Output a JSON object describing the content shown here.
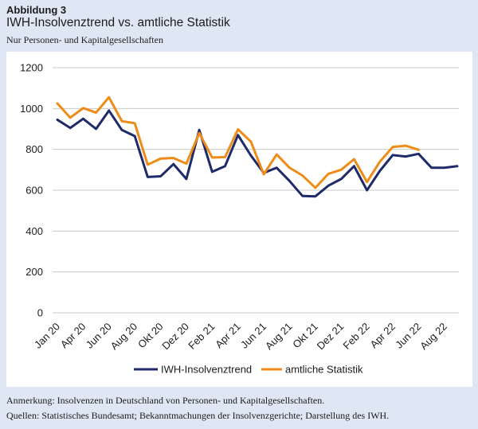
{
  "header": {
    "figure_label": "Abbildung 3",
    "title": "IWH-Insolvenztrend vs. amtliche Statistik",
    "subtitle": "Nur Personen- und Kapitalgesellschaften"
  },
  "footer": {
    "note": "Anmerkung: Insolvenzen in Deutschland von Personen- und Kapitalgesellschaften.",
    "sources": "Quellen: Statistisches Bundesamt; Bekanntmachungen der Insolvenzgerichte; Darstellung des IWH."
  },
  "chart_data": {
    "type": "line",
    "title": "IWH-Insolvenztrend vs. amtliche Statistik",
    "subtitle": "Nur Personen- und Kapitalgesellschaften",
    "xlabel": "",
    "ylabel": "",
    "ylim": [
      0,
      1200
    ],
    "yticks": [
      0,
      200,
      400,
      600,
      800,
      1000,
      1200
    ],
    "grid": true,
    "legend_position": "bottom",
    "x": [
      "Jan 20",
      "Feb 20",
      "Mar 20",
      "Apr 20",
      "May 20",
      "Jun 20",
      "Jul 20",
      "Aug 20",
      "Sep 20",
      "Oct 20",
      "Nov 20",
      "Dec 20",
      "Jan 21",
      "Feb 21",
      "Mar 21",
      "Apr 21",
      "May 21",
      "Jun 21",
      "Jul 21",
      "Aug 21",
      "Sep 21",
      "Oct 21",
      "Nov 21",
      "Dec 21",
      "Jan 22",
      "Feb 22",
      "Mar 22",
      "Apr 22",
      "May 22",
      "Jun 22",
      "Jul 22",
      "Aug 22"
    ],
    "tick_labels": [
      "Jan 20",
      "Apr 20",
      "Jun 20",
      "Aug 20",
      "Okt 20",
      "Dez 20",
      "Feb 21",
      "Apr 21",
      "Jun 21",
      "Aug 21",
      "Okt 21",
      "Dez 21",
      "Feb 22",
      "Apr 22",
      "Jun 22",
      "Aug 22"
    ],
    "series": [
      {
        "name": "IWH-Insolvenztrend",
        "color": "#1f2a6b",
        "values": [
          945,
          905,
          950,
          900,
          990,
          895,
          865,
          665,
          668,
          728,
          655,
          895,
          690,
          718,
          870,
          770,
          685,
          710,
          645,
          572,
          570,
          622,
          655,
          718,
          600,
          695,
          772,
          765,
          778,
          710,
          710,
          718
        ]
      },
      {
        "name": "amtliche Statistik",
        "color": "#ee8c17",
        "values": [
          1025,
          955,
          1002,
          980,
          1055,
          938,
          928,
          725,
          755,
          758,
          730,
          880,
          760,
          762,
          898,
          838,
          678,
          775,
          710,
          672,
          612,
          680,
          700,
          752,
          640,
          740,
          812,
          818,
          798,
          null,
          null,
          null
        ]
      }
    ]
  }
}
